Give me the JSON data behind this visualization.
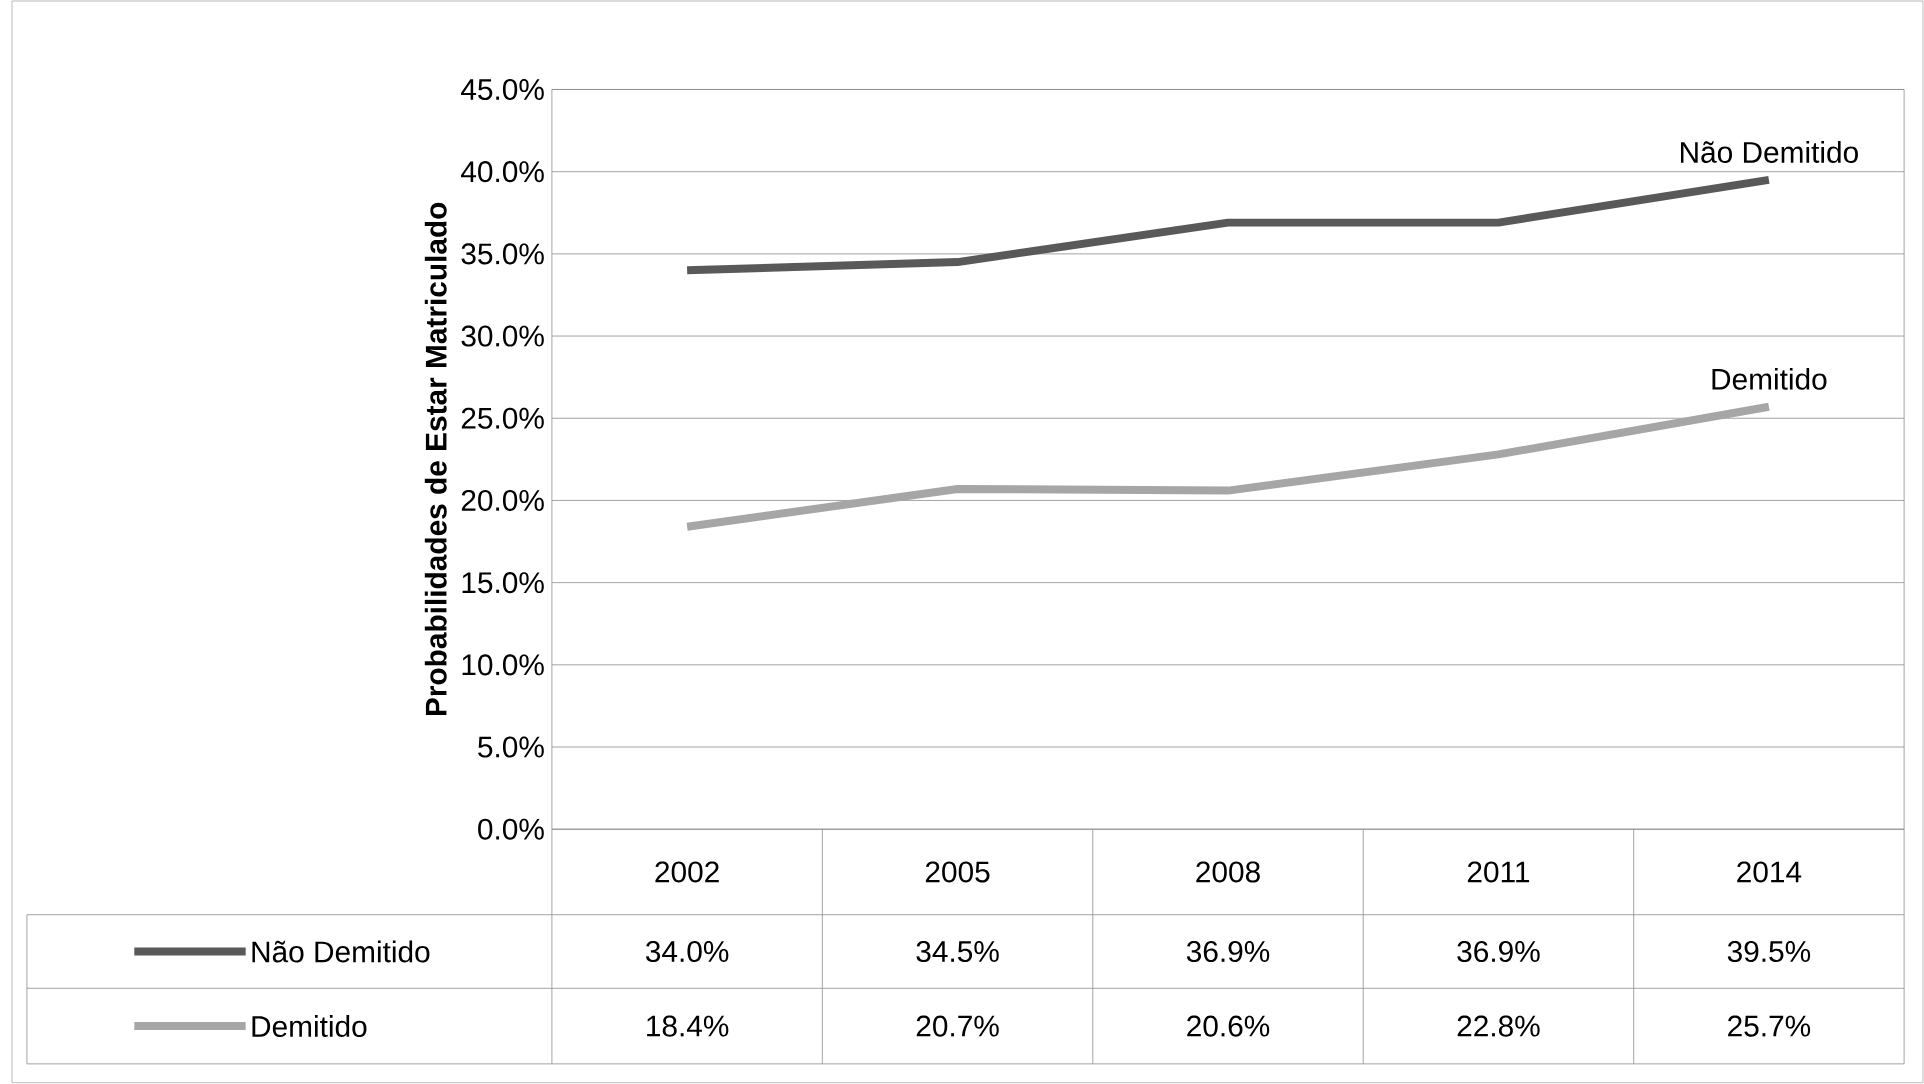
{
  "chart_data": {
    "type": "line",
    "ylabel": "Probabilidades de Estar Matriculado",
    "categories": [
      "2002",
      "2005",
      "2008",
      "2011",
      "2014"
    ],
    "series": [
      {
        "name": "Não Demitido",
        "color": "#595959",
        "values": [
          34.0,
          34.5,
          36.9,
          36.9,
          39.5
        ],
        "value_labels": [
          "34.0%",
          "34.5%",
          "36.9%",
          "36.9%",
          "39.5%"
        ]
      },
      {
        "name": "Demitido",
        "color": "#a6a6a6",
        "values": [
          18.4,
          20.7,
          20.6,
          22.8,
          25.7
        ],
        "value_labels": [
          "18.4%",
          "20.7%",
          "20.6%",
          "22.8%",
          "25.7%"
        ]
      }
    ],
    "ylim": [
      0,
      45
    ],
    "yticks": [
      {
        "value": 0,
        "label": "0.0%"
      },
      {
        "value": 5,
        "label": "5.0%"
      },
      {
        "value": 10,
        "label": "10.0%"
      },
      {
        "value": 15,
        "label": "15.0%"
      },
      {
        "value": 20,
        "label": "20.0%"
      },
      {
        "value": 25,
        "label": "25.0%"
      },
      {
        "value": 30,
        "label": "30.0%"
      },
      {
        "value": 35,
        "label": "35.0%"
      },
      {
        "value": 40,
        "label": "40.0%"
      },
      {
        "value": 45,
        "label": "45.0%"
      }
    ],
    "grid": "y",
    "legend": "bottom"
  }
}
